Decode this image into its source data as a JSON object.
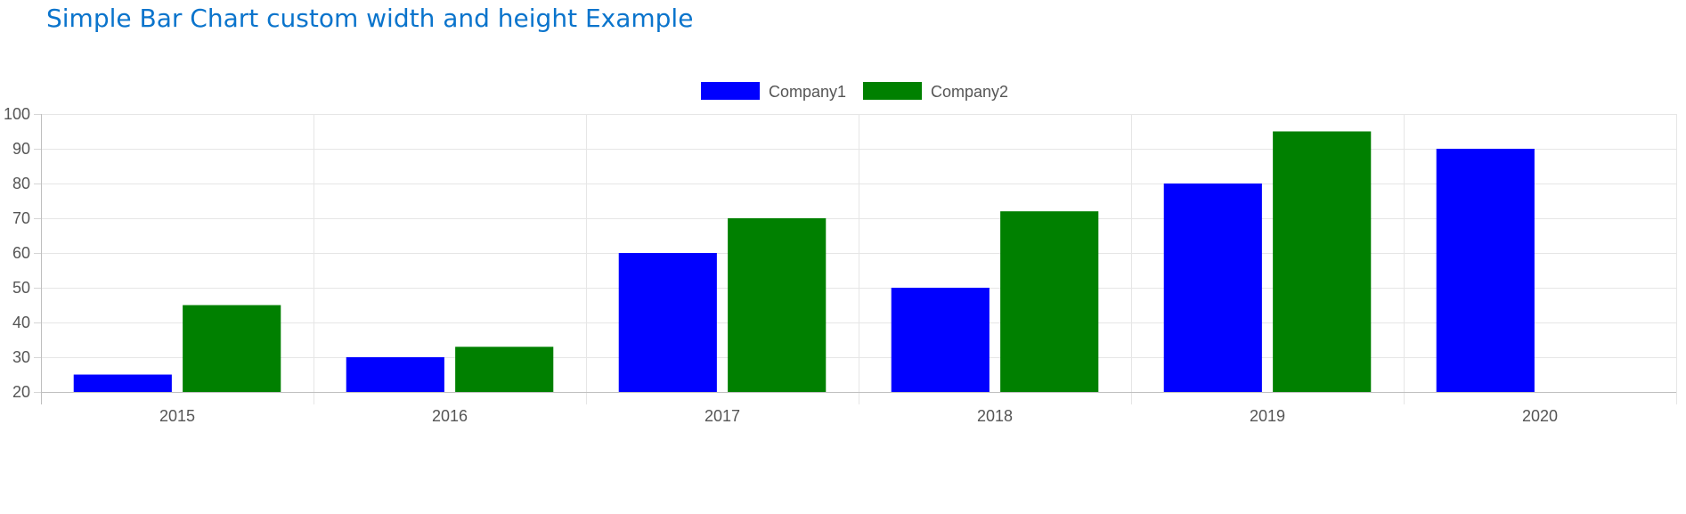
{
  "page": {
    "title": "Simple Bar Chart custom width and height Example"
  },
  "chart_data": {
    "type": "bar",
    "title": "",
    "xlabel": "",
    "ylabel": "",
    "categories": [
      "2015",
      "2016",
      "2017",
      "2018",
      "2019",
      "2020"
    ],
    "series": [
      {
        "name": "Company1",
        "color": "#0000ff",
        "values": [
          25,
          30,
          60,
          50,
          80,
          90
        ]
      },
      {
        "name": "Company2",
        "color": "#008000",
        "values": [
          45,
          33,
          70,
          72,
          95,
          null
        ]
      }
    ],
    "ylim": [
      20,
      100
    ],
    "yticks": [
      20,
      30,
      40,
      50,
      60,
      70,
      80,
      90,
      100
    ],
    "grid": true,
    "legend_position": "top"
  }
}
